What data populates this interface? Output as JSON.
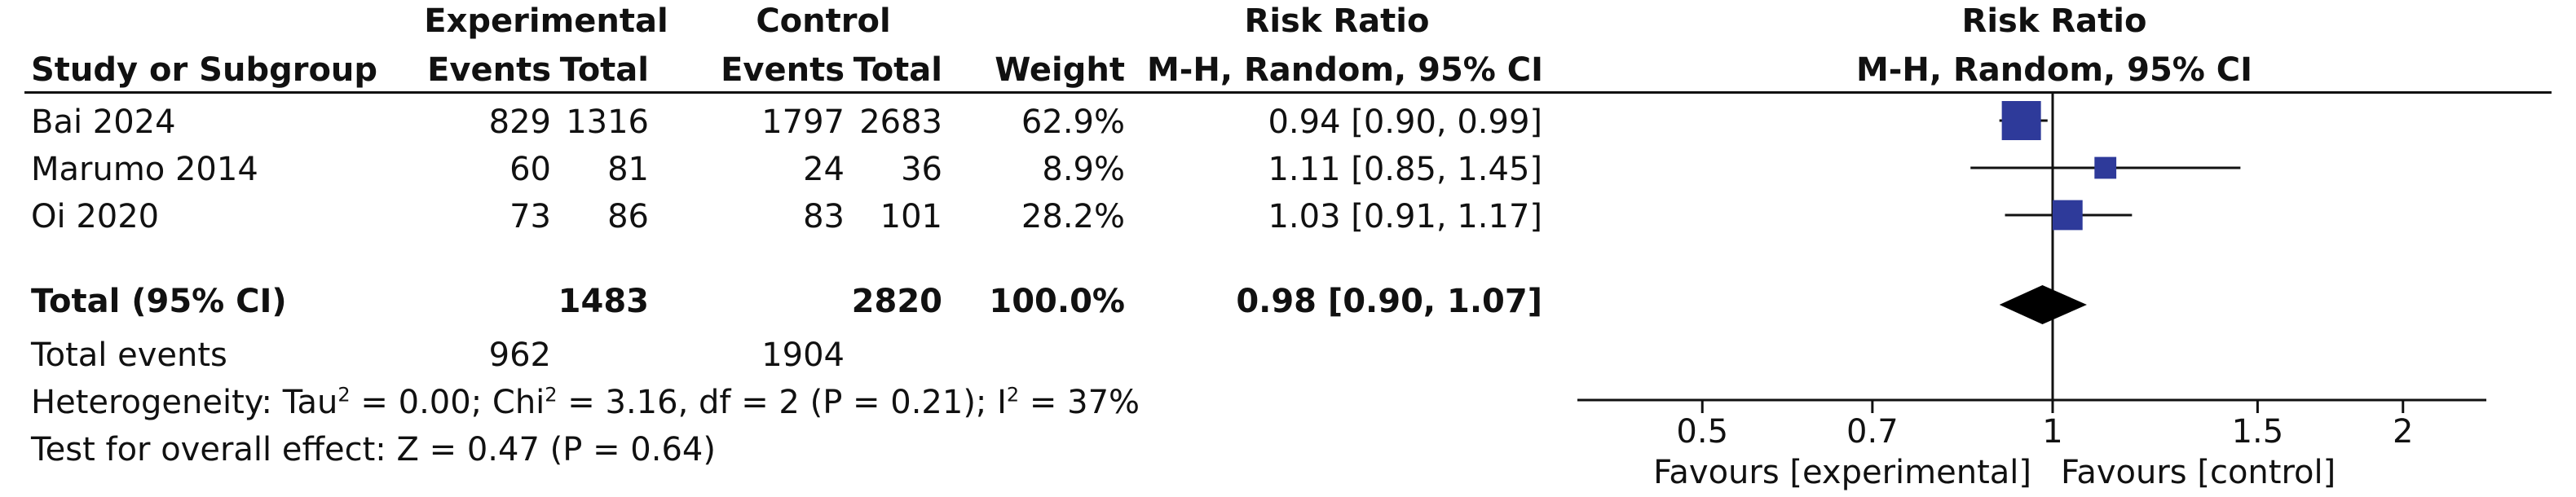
{
  "headers": {
    "experimental": "Experimental",
    "control": "Control",
    "risk_ratio": "Risk Ratio",
    "study": "Study or Subgroup",
    "events": "Events",
    "total": "Total",
    "weight": "Weight",
    "method": "M-H, Random, 95% CI",
    "plot_title": "Risk Ratio",
    "plot_method": "M-H, Random, 95% CI"
  },
  "studies": [
    {
      "name": "Bai 2024",
      "exp_events": "829",
      "exp_total": "1316",
      "ctl_events": "1797",
      "ctl_total": "2683",
      "weight": "62.9%",
      "ci_text": "0.94 [0.90, 0.99]"
    },
    {
      "name": "Marumo 2014",
      "exp_events": "60",
      "exp_total": "81",
      "ctl_events": "24",
      "ctl_total": "36",
      "weight": "8.9%",
      "ci_text": "1.11 [0.85, 1.45]"
    },
    {
      "name": "Oi 2020",
      "exp_events": "73",
      "exp_total": "86",
      "ctl_events": "83",
      "ctl_total": "101",
      "weight": "28.2%",
      "ci_text": "1.03 [0.91, 1.17]"
    }
  ],
  "total": {
    "label": "Total (95% CI)",
    "exp_total": "1483",
    "ctl_total": "2820",
    "weight": "100.0%",
    "ci_text": "0.98 [0.90, 1.07]"
  },
  "total_events": {
    "label": "Total events",
    "exp": "962",
    "ctl": "1904"
  },
  "heterogeneity": {
    "prefix": "Heterogeneity: Tau",
    "tau_rest": " = 0.00; Chi",
    "chi_rest": " = 3.16, df = 2 (P = 0.21); I",
    "i_rest": " = 37%",
    "sup": "2"
  },
  "overall_effect": "Test for overall effect: Z = 0.47 (P = 0.64)",
  "axis": {
    "favours_left": "Favours [experimental]",
    "favours_right": "Favours [control]"
  },
  "chart_data": {
    "type": "forest",
    "scale": "log",
    "xlim": [
      0.4,
      2.5
    ],
    "ticks": [
      0.5,
      0.7,
      1,
      1.5,
      2
    ],
    "tick_labels": [
      "0.5",
      "0.7",
      "1",
      "1.5",
      "2"
    ],
    "null_line": 1,
    "marker_color": "#2e3a9a",
    "series": [
      {
        "name": "Bai 2024",
        "estimate": 0.94,
        "lower": 0.9,
        "upper": 0.99,
        "weight": 62.9
      },
      {
        "name": "Marumo 2014",
        "estimate": 1.11,
        "lower": 0.85,
        "upper": 1.45,
        "weight": 8.9
      },
      {
        "name": "Oi 2020",
        "estimate": 1.03,
        "lower": 0.91,
        "upper": 1.17,
        "weight": 28.2
      }
    ],
    "pooled": {
      "name": "Total (95% CI)",
      "estimate": 0.98,
      "lower": 0.9,
      "upper": 1.07
    }
  }
}
